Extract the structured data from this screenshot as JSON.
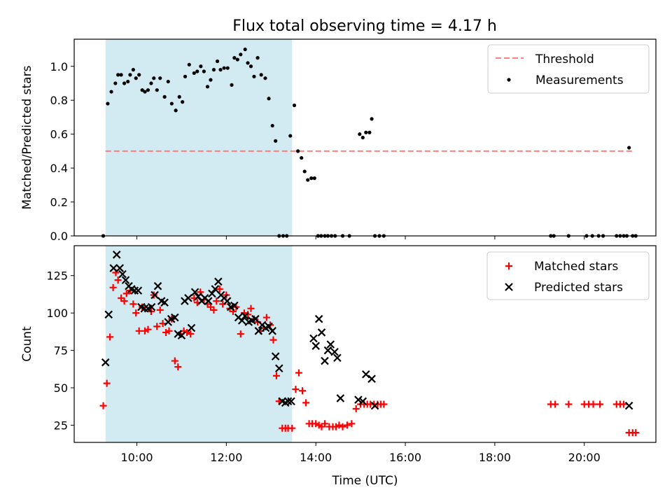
{
  "figure": {
    "title": "Flux total observing time = 4.17 h"
  },
  "chart_data": [
    {
      "type": "scatter",
      "panel": "top",
      "ylabel": "Matched/Predicted stars",
      "xlabel": "",
      "xlim": [
        8.6,
        21.6
      ],
      "ylim": [
        0,
        1.16
      ],
      "yticks": [
        0.0,
        0.2,
        0.4,
        0.6,
        0.8,
        1.0
      ],
      "ytick_labels": [
        "0.0",
        "0.2",
        "0.4",
        "0.6",
        "0.8",
        "1.0"
      ],
      "xticks": [
        10,
        12,
        14,
        16,
        18,
        20
      ],
      "tick_labels_visible": false,
      "shaded_span": {
        "x_start": 9.3,
        "x_end": 13.47,
        "color": "#add8e6"
      },
      "legend_position": "top-right",
      "threshold": {
        "name": "Threshold",
        "y": 0.5,
        "x_start": 9.3,
        "x_end": 21.1,
        "color": "#ff7f7f",
        "style": "dashed"
      },
      "series": [
        {
          "name": "Measurements",
          "color": "#000000",
          "marker": "dot",
          "x": [
            9.25,
            9.35,
            9.43,
            9.52,
            9.58,
            9.65,
            9.72,
            9.8,
            9.85,
            9.92,
            9.98,
            10.05,
            10.12,
            10.18,
            10.25,
            10.32,
            10.38,
            10.45,
            10.52,
            10.62,
            10.7,
            10.78,
            10.87,
            10.95,
            11.02,
            11.08,
            11.17,
            11.28,
            11.35,
            11.43,
            11.5,
            11.58,
            11.65,
            11.72,
            11.8,
            11.87,
            11.95,
            12.03,
            12.12,
            12.18,
            12.25,
            12.32,
            12.42,
            12.48,
            12.55,
            12.62,
            12.7,
            12.78,
            12.87,
            12.95,
            13.03,
            13.1,
            13.18,
            13.27,
            13.35,
            13.43,
            13.52,
            13.6,
            13.68,
            13.75,
            13.82,
            13.9,
            13.97,
            14.05,
            14.12,
            14.2,
            14.27,
            14.35,
            14.43,
            14.6,
            14.75,
            14.98,
            15.05,
            15.12,
            15.2,
            15.25,
            15.32,
            15.42,
            15.52,
            19.25,
            19.32,
            19.65,
            20.05,
            20.18,
            20.32,
            20.42,
            20.72,
            20.8,
            20.88,
            20.95,
            21.0,
            21.08,
            21.15
          ],
          "y": [
            0.0,
            0.78,
            0.85,
            0.9,
            0.95,
            0.95,
            0.9,
            0.91,
            0.95,
            0.98,
            0.93,
            0.95,
            0.86,
            0.85,
            0.86,
            0.9,
            0.93,
            0.86,
            0.93,
            0.82,
            0.91,
            0.78,
            0.74,
            0.82,
            0.79,
            0.94,
            1.01,
            0.96,
            0.97,
            1.0,
            0.97,
            0.88,
            0.92,
            0.98,
            1.03,
            0.98,
            0.99,
            0.99,
            0.89,
            1.05,
            1.04,
            1.07,
            1.1,
            1.02,
            1.0,
            0.94,
            1.05,
            0.95,
            0.93,
            0.81,
            0.65,
            0.56,
            0.0,
            0.0,
            0.0,
            0.59,
            0.77,
            0.5,
            0.46,
            0.38,
            0.33,
            0.34,
            0.34,
            0.0,
            0.0,
            0.0,
            0.0,
            0.0,
            0.0,
            0.0,
            0.0,
            0.6,
            0.58,
            0.61,
            0.61,
            0.69,
            0.0,
            0.0,
            0.0,
            0.0,
            0.0,
            0.0,
            0.0,
            0.0,
            0.0,
            0.0,
            0.0,
            0.0,
            0.0,
            0.0,
            0.52,
            0.0,
            0.0
          ]
        }
      ]
    },
    {
      "type": "scatter",
      "panel": "bottom",
      "xlabel": "Time (UTC)",
      "ylabel": "Count",
      "xlim": [
        8.6,
        21.6
      ],
      "ylim": [
        13.5,
        145
      ],
      "yticks": [
        25,
        50,
        75,
        100,
        125
      ],
      "ytick_labels": [
        "25",
        "50",
        "75",
        "100",
        "125"
      ],
      "xticks": [
        10,
        12,
        14,
        16,
        18,
        20
      ],
      "xtick_labels": [
        "10:00",
        "12:00",
        "14:00",
        "16:00",
        "18:00",
        "20:00"
      ],
      "shaded_span": {
        "x_start": 9.3,
        "x_end": 13.47,
        "color": "#add8e6"
      },
      "legend_position": "top-right",
      "series": [
        {
          "name": "Matched stars",
          "color": "#ff0000",
          "marker": "plus",
          "x": [
            9.25,
            9.33,
            9.4,
            9.47,
            9.53,
            9.58,
            9.65,
            9.72,
            9.77,
            9.85,
            9.92,
            9.98,
            10.05,
            10.12,
            10.18,
            10.25,
            10.32,
            10.38,
            10.45,
            10.52,
            10.58,
            10.65,
            10.72,
            10.78,
            10.85,
            10.92,
            10.98,
            11.05,
            11.12,
            11.2,
            11.28,
            11.35,
            11.42,
            11.5,
            11.58,
            11.65,
            11.72,
            11.78,
            11.85,
            11.92,
            12.0,
            12.08,
            12.15,
            12.22,
            12.32,
            12.4,
            12.48,
            12.55,
            12.62,
            12.7,
            12.77,
            12.83,
            12.9,
            12.98,
            13.05,
            13.12,
            13.18,
            13.25,
            13.32,
            13.38,
            13.47,
            13.55,
            13.62,
            13.7,
            13.78,
            13.85,
            13.92,
            14.0,
            14.07,
            14.13,
            14.2,
            14.3,
            14.38,
            14.45,
            14.52,
            14.6,
            14.7,
            14.8,
            14.9,
            15.0,
            15.08,
            15.15,
            15.22,
            15.3,
            15.38,
            15.45,
            15.52,
            19.25,
            19.35,
            19.65,
            20.0,
            20.1,
            20.2,
            20.35,
            20.72,
            20.8,
            20.88,
            21.0,
            21.08,
            21.15
          ],
          "y": [
            38,
            53,
            84,
            117,
            127,
            122,
            110,
            108,
            113,
            115,
            106,
            100,
            88,
            104,
            88,
            89,
            101,
            112,
            91,
            102,
            93,
            87,
            88,
            96,
            68,
            64,
            86,
            88,
            87,
            86,
            110,
            107,
            114,
            109,
            106,
            104,
            102,
            108,
            116,
            106,
            112,
            103,
            101,
            104,
            86,
            100,
            99,
            103,
            96,
            94,
            88,
            90,
            97,
            92,
            82,
            58,
            41,
            23,
            23,
            23,
            23,
            49,
            60,
            48,
            40,
            26,
            26,
            26,
            25,
            24,
            26,
            24,
            24,
            24,
            25,
            24,
            25,
            26,
            36,
            39,
            39,
            39,
            39,
            39,
            39,
            39,
            39,
            39,
            39,
            39,
            39,
            39,
            39,
            39,
            39,
            39,
            39,
            20,
            20,
            20
          ],
          "x_note": ""
        },
        {
          "name": "Predicted stars",
          "color": "#000000",
          "marker": "x",
          "x": [
            9.3,
            9.37,
            9.48,
            9.55,
            9.62,
            9.68,
            9.75,
            9.82,
            9.88,
            9.95,
            10.03,
            10.1,
            10.17,
            10.25,
            10.33,
            10.4,
            10.47,
            10.55,
            10.62,
            10.7,
            10.77,
            10.85,
            10.92,
            11.0,
            11.07,
            11.15,
            11.22,
            11.3,
            11.37,
            11.45,
            11.52,
            11.6,
            11.68,
            11.75,
            11.82,
            11.88,
            11.95,
            12.02,
            12.1,
            12.18,
            12.27,
            12.35,
            12.42,
            12.5,
            12.57,
            12.65,
            12.72,
            12.8,
            12.88,
            12.95,
            13.03,
            13.1,
            13.18,
            13.25,
            13.32,
            13.38,
            13.45,
            13.95,
            14.0,
            14.07,
            14.13,
            14.2,
            14.27,
            14.33,
            14.42,
            14.48,
            14.55,
            14.95,
            15.05,
            15.12,
            15.25,
            15.32,
            21.0
          ],
          "y": [
            67,
            99,
            130,
            139,
            130,
            126,
            122,
            118,
            116,
            115,
            115,
            104,
            103,
            103,
            104,
            112,
            118,
            108,
            107,
            94,
            96,
            97,
            86,
            85,
            108,
            110,
            90,
            114,
            111,
            108,
            110,
            108,
            113,
            116,
            121,
            112,
            110,
            108,
            104,
            105,
            97,
            95,
            98,
            94,
            95,
            96,
            88,
            92,
            90,
            91,
            88,
            71,
            63,
            41,
            40,
            41,
            41,
            83,
            78,
            96,
            87,
            68,
            75,
            79,
            74,
            70,
            43,
            42,
            41,
            59,
            56,
            38,
            38
          ],
          "x_note": ""
        }
      ]
    }
  ]
}
